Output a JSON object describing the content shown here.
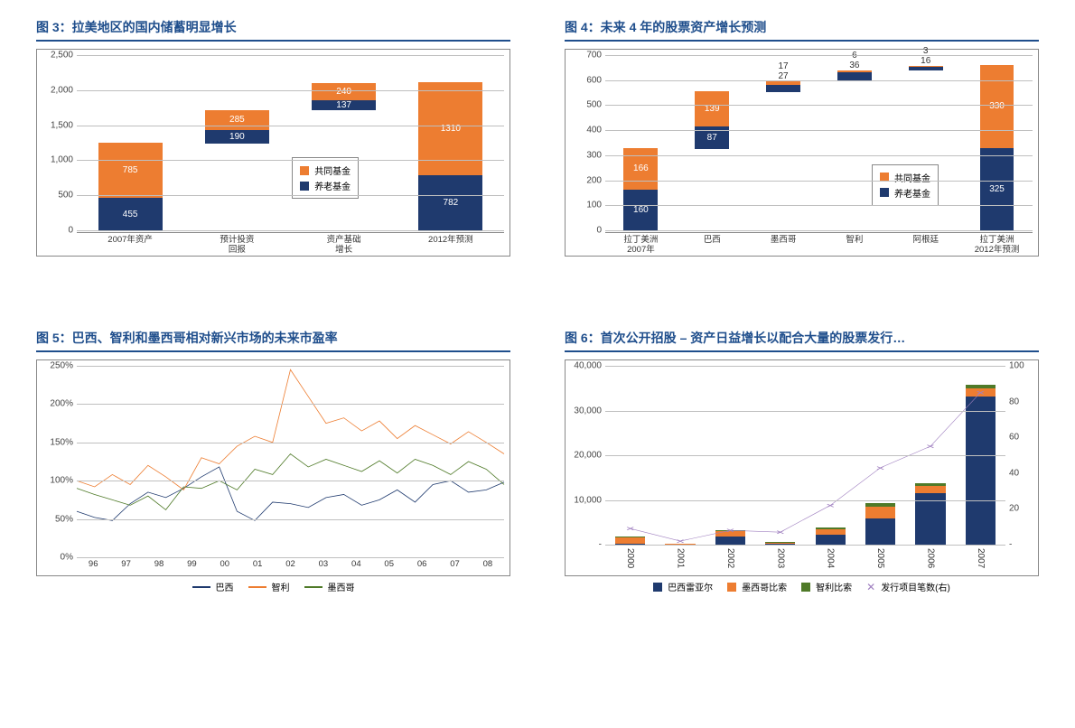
{
  "colors": {
    "navy": "#1f3a6e",
    "orange": "#ed7d31",
    "green": "#4f7a28",
    "purple": "#a080c0",
    "title": "#1f4e8c",
    "grid": "#bfbfbf"
  },
  "chart3": {
    "title": "图 3：拉美地区的国内储蓄明显增长",
    "type": "stacked-bar",
    "ymax": 2500,
    "ytick": 500,
    "yticks": [
      "0",
      "500",
      "1,000",
      "1,500",
      "2,000",
      "2,500"
    ],
    "categories": [
      "2007年资产",
      "预计投资\n回报",
      "资产基础\n增长",
      "2012年预测"
    ],
    "series_names": {
      "mutual": "共同基金",
      "pension": "养老基金"
    },
    "bars": [
      {
        "pension": 455,
        "mutual": 785,
        "base": 0
      },
      {
        "pension": 190,
        "mutual": 285,
        "base": 1240
      },
      {
        "pension": 137,
        "mutual": 240,
        "base": 1715
      },
      {
        "pension": 782,
        "mutual": 1310,
        "base": 0
      }
    ]
  },
  "chart4": {
    "title": "图 4：未来 4 年的股票资产增长预测",
    "type": "stacked-bar",
    "ymax": 700,
    "ytick": 100,
    "yticks": [
      "0",
      "100",
      "200",
      "300",
      "400",
      "500",
      "600",
      "700"
    ],
    "categories": [
      "拉丁美洲\n2007年",
      "巴西",
      "墨西哥",
      "智利",
      "阿根廷",
      "拉丁美洲\n2012年预测"
    ],
    "series_names": {
      "mutual": "共同基金",
      "pension": "养老基金"
    },
    "bars": [
      {
        "pension": 160,
        "mutual": 166,
        "base": 0
      },
      {
        "pension": 87,
        "mutual": 139,
        "base": 326
      },
      {
        "pension": 27,
        "mutual": 17,
        "base": 552,
        "labels_above": true
      },
      {
        "pension": 36,
        "mutual": 6,
        "base": 596,
        "labels_above": true
      },
      {
        "pension": 16,
        "mutual": 3,
        "base": 638,
        "labels_above": true
      },
      {
        "pension": 325,
        "mutual": 330,
        "base": 0
      }
    ]
  },
  "chart5": {
    "title": "图 5：巴西、智利和墨西哥相对新兴市场的未来市盈率",
    "type": "line",
    "ymin": 0,
    "ymax": 250,
    "ytick": 50,
    "yticks": [
      "0%",
      "50%",
      "100%",
      "150%",
      "200%",
      "250%"
    ],
    "x_labels": [
      "96",
      "97",
      "98",
      "99",
      "00",
      "01",
      "02",
      "03",
      "04",
      "05",
      "06",
      "07",
      "08"
    ],
    "series": [
      {
        "name": "巴西",
        "color": "#1f3a6e",
        "points": [
          60,
          52,
          48,
          70,
          85,
          78,
          90,
          105,
          118,
          60,
          48,
          72,
          70,
          65,
          78,
          82,
          68,
          75,
          88,
          72,
          95,
          100,
          85,
          88,
          98
        ]
      },
      {
        "name": "智利",
        "color": "#ed7d31",
        "points": [
          100,
          92,
          108,
          95,
          120,
          105,
          88,
          130,
          122,
          145,
          158,
          150,
          245,
          210,
          175,
          182,
          165,
          178,
          155,
          172,
          160,
          148,
          164,
          150,
          135
        ]
      },
      {
        "name": "墨西哥",
        "color": "#4f7a28",
        "points": [
          90,
          82,
          75,
          68,
          80,
          62,
          92,
          90,
          100,
          88,
          115,
          108,
          135,
          118,
          128,
          120,
          112,
          126,
          110,
          128,
          120,
          108,
          125,
          115,
          95
        ]
      }
    ]
  },
  "chart6": {
    "title": "图 6：首次公开招股 – 资产日益增长以配合大量的股票发行…",
    "type": "combo",
    "ymax": 40000,
    "ytick": 10000,
    "yticks": [
      "-",
      "10,000",
      "20,000",
      "30,000",
      "40,000"
    ],
    "y2max": 100,
    "y2tick": 20,
    "y2ticks": [
      "-",
      "20",
      "40",
      "60",
      "80",
      "100"
    ],
    "x_labels": [
      "2000",
      "2001",
      "2002",
      "2003",
      "2004",
      "2005",
      "2006",
      "2007"
    ],
    "series_names": {
      "brl": "巴西雷亚尔",
      "mxn": "墨西哥比索",
      "clp": "智利比索",
      "deals": "发行项目笔数(右)"
    },
    "bars": [
      {
        "brl": 300,
        "mxn": 1400,
        "clp": 100
      },
      {
        "brl": 50,
        "mxn": 100,
        "clp": 50
      },
      {
        "brl": 1800,
        "mxn": 1200,
        "clp": 200
      },
      {
        "brl": 200,
        "mxn": 300,
        "clp": 100
      },
      {
        "brl": 2200,
        "mxn": 1200,
        "clp": 400
      },
      {
        "brl": 5800,
        "mxn": 2600,
        "clp": 900
      },
      {
        "brl": 11500,
        "mxn": 1500,
        "clp": 600
      },
      {
        "brl": 32800,
        "mxn": 1800,
        "clp": 900
      }
    ],
    "deals_right_axis": [
      9,
      2,
      8,
      7,
      22,
      43,
      55,
      85
    ]
  }
}
